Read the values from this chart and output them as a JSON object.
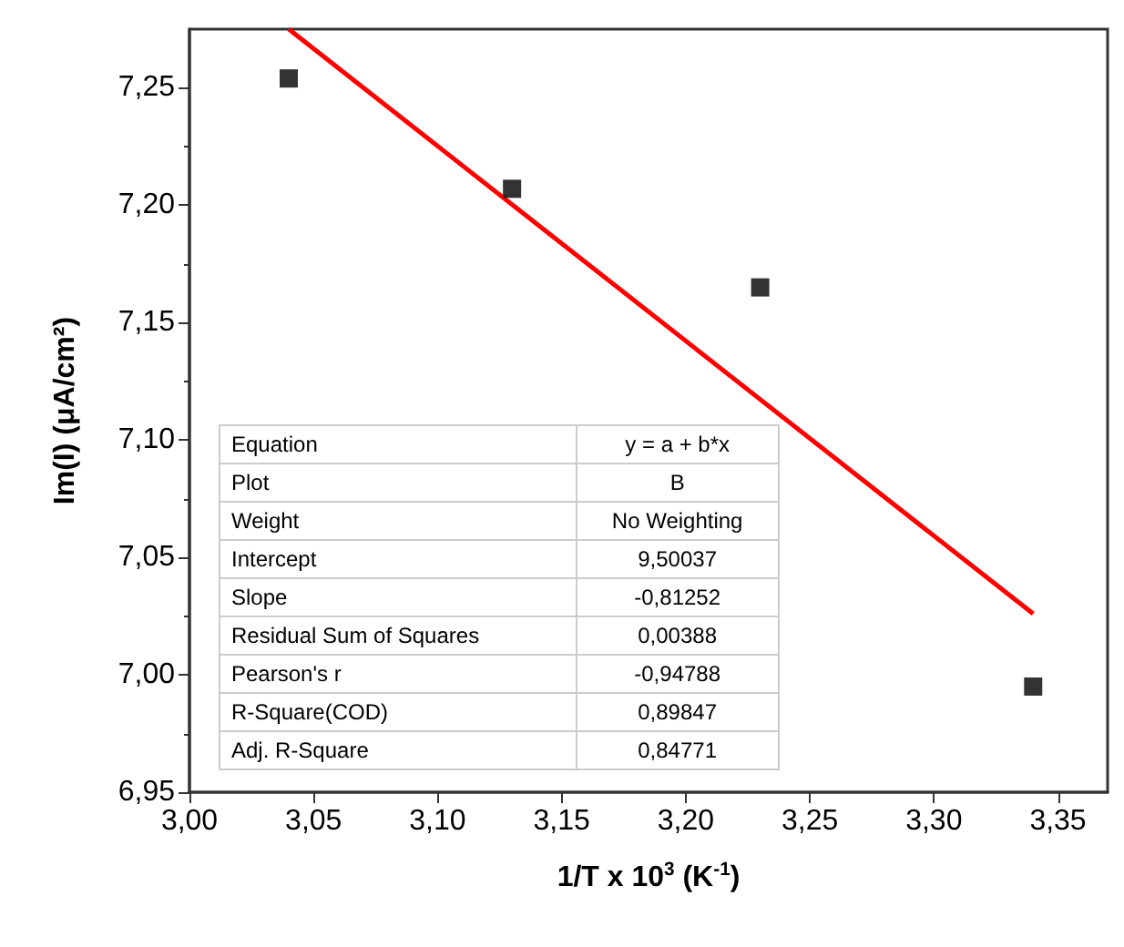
{
  "chart_data": {
    "type": "scatter",
    "xlabel": "1/T x 10$^{3}$ (K$^{-1}$)",
    "ylabel": "Im(I) (μA/cm²)",
    "series": [
      {
        "color": "#000000",
        "marker": "square",
        "x": [
          3.04,
          3.13,
          3.23,
          3.34
        ],
        "values": [
          7.254,
          7.207,
          7.165,
          6.995
        ]
      },
      {
        "type": "line",
        "color": "#ff0000",
        "marker": "none",
        "line_style": "solid",
        "x": [
          3.04,
          3.34
        ],
        "values": [
          7.275,
          7.026
        ]
      }
    ],
    "xlim": [
      3.0,
      3.37
    ],
    "ylim": [
      6.95,
      7.275
    ],
    "xticks": [
      {
        "value": 3.0,
        "label": "3,00"
      },
      {
        "value": 3.05,
        "label": "3,05"
      },
      {
        "value": 3.1,
        "label": "3,10"
      },
      {
        "value": 3.15,
        "label": "3,15"
      },
      {
        "value": 3.2,
        "label": "3,20"
      },
      {
        "value": 3.25,
        "label": "3,25"
      },
      {
        "value": 3.3,
        "label": "3,30"
      },
      {
        "value": 3.35,
        "label": "3,35"
      }
    ],
    "yticks": [
      {
        "value": 6.95,
        "label": "6,95"
      },
      {
        "value": 7.0,
        "label": "7,00"
      },
      {
        "value": 7.05,
        "label": "7,05"
      },
      {
        "value": 7.1,
        "label": "7,10"
      },
      {
        "value": 7.15,
        "label": "7,15"
      },
      {
        "value": 7.2,
        "label": "7,20"
      },
      {
        "value": 7.25,
        "label": "7,25"
      }
    ],
    "grid": false,
    "annotations": [
      "Equation",
      "y = a + b*x",
      "Plot",
      "B",
      "Weight",
      "No Weighting",
      "Intercept",
      "9,50037",
      "Slope",
      "-0,81252",
      "Residual Sum of Squares",
      "0,00388",
      "Pearson's r",
      "-0,94788",
      "R-Square(COD)",
      "0,89847",
      "Adj. R-Square",
      "0,84771"
    ]
  }
}
